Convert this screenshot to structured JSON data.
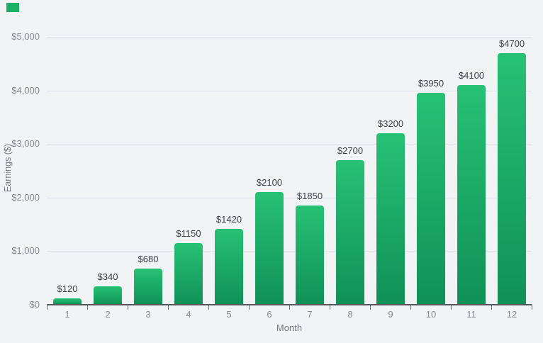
{
  "legend": {
    "position": "top-left",
    "swatch_color": "#1caf66"
  },
  "chart_data": {
    "type": "bar",
    "categories": [
      "1",
      "2",
      "3",
      "4",
      "5",
      "6",
      "7",
      "8",
      "9",
      "10",
      "11",
      "12"
    ],
    "values": [
      120,
      340,
      680,
      1150,
      1420,
      2100,
      1850,
      2700,
      3200,
      3950,
      4100,
      4700
    ],
    "bar_labels": [
      "$120",
      "$340",
      "$680",
      "$1150",
      "$1420",
      "$2100",
      "$1850",
      "$2700",
      "$3200",
      "$3950",
      "$4100",
      "$4700"
    ],
    "xlabel": "Month",
    "ylabel": "Earnings ($)",
    "ylim": [
      0,
      5000
    ],
    "ytick_values": [
      0,
      1000,
      2000,
      3000,
      4000,
      5000
    ],
    "ytick_labels": [
      "$0",
      "$1,000",
      "$2,000",
      "$3,000",
      "$4,000",
      "$5,000"
    ],
    "grid": "horizontal-only",
    "legend_position": "top-left",
    "colors": {
      "background": "#f2f3f5",
      "bar_gradient_top": "#27c175",
      "bar_gradient_bottom": "#109157",
      "gridline": "#dee2eb",
      "axis_line": "#55595e",
      "tick_label": "#85898d",
      "axis_title": "#75797e",
      "value_label": "#3b4045"
    }
  }
}
